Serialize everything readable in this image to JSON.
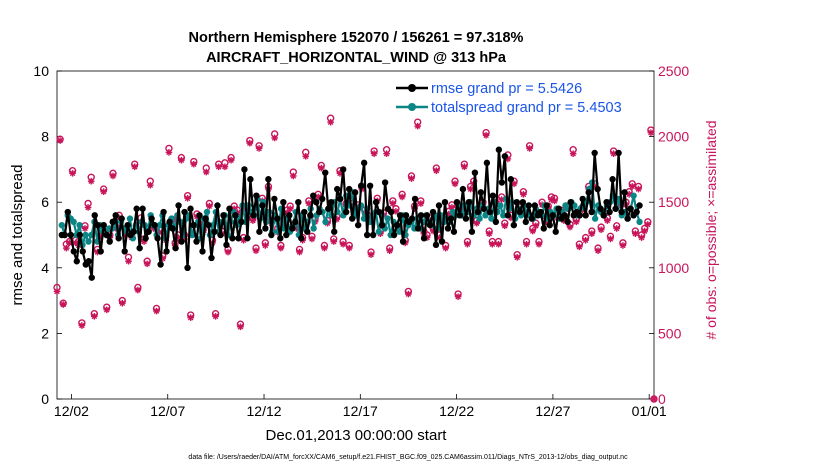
{
  "chart_data": {
    "type": "line",
    "title": "Northern Hemisphere 152070 / 156261 = 97.318%",
    "subtitle": "AIRCRAFT_HORIZONTAL_WIND @ 313 hPa",
    "xlabel": "Dec.01,2013 00:00:00 start",
    "ylabel": "rmse and totalspread",
    "y2label": "# of obs: o=possible; ×=assimilated",
    "footer": "data file: /Users/raeder/DAI/ATM_forcXX/CAM6_setup/f.e21.FHIST_BGC.f09_025.CAM6assim.011/Diags_NTrS_2013-12/obs_diag_output.nc",
    "x_ticks": [
      "12/02",
      "12/07",
      "12/12",
      "12/17",
      "12/22",
      "12/27",
      "01/01"
    ],
    "x_tick_days": [
      1,
      6,
      11,
      16,
      21,
      26,
      31
    ],
    "xlim": [
      0.25,
      31.25
    ],
    "ylim": [
      0,
      10
    ],
    "y_ticks": [
      "0",
      "2",
      "4",
      "6",
      "8",
      "10"
    ],
    "y2lim": [
      0,
      2500
    ],
    "y2_ticks": [
      "0",
      "500",
      "1000",
      "1500",
      "2000",
      "2500"
    ],
    "colors": {
      "rmse": "#000000",
      "spread": "#0b8585",
      "obs": "#c8155a",
      "legend_text": "#1a55e8"
    },
    "series": [
      {
        "name": "rmse grand pr = 5.5426",
        "values": [
          5.0,
          5.0,
          5.7,
          5.0,
          4.5,
          4.2,
          5.0,
          4.5,
          4.1,
          4.2,
          3.7,
          5.6,
          5.3,
          4.5,
          5.3,
          5.0,
          4.8,
          5.4,
          5.6,
          4.9,
          5.5,
          4.5,
          5.3,
          5.0,
          5.1,
          5.8,
          4.6,
          5.8,
          4.9,
          5.1,
          5.5,
          5.3,
          4.9,
          4.1,
          5.7,
          4.5,
          5.4,
          5.2,
          4.6,
          5.9,
          4.8,
          5.7,
          4.0,
          5.8,
          5.3,
          4.8,
          5.6,
          4.5,
          5.5,
          5.3,
          4.3,
          5.1,
          5.9,
          5.0,
          5.6,
          4.7,
          5.8,
          4.9,
          5.6,
          4.9,
          5.4,
          7.0,
          4.9,
          6.7,
          5.6,
          6.2,
          5.1,
          5.9,
          5.2,
          6.7,
          5.0,
          6.1,
          5.5,
          4.9,
          6.0,
          5.0,
          5.6,
          5.2,
          5.4,
          6.0,
          4.9,
          5.7,
          5.1,
          5.6,
          6.2,
          6.0,
          5.7,
          6.1,
          6.9,
          5.8,
          6.0,
          5.1,
          6.4,
          6.1,
          7.0,
          5.7,
          6.4,
          5.5,
          6.3,
          5.3,
          6.5,
          7.2,
          5.0,
          6.5,
          5.0,
          6.0,
          5.7,
          5.3,
          6.6,
          5.8,
          5.7,
          5.0,
          5.3,
          5.6,
          4.8,
          5.6,
          5.4,
          5.5,
          6.1,
          5.2,
          5.6,
          4.9,
          5.6,
          5.3,
          5.7,
          4.7,
          5.9,
          4.8,
          6.0,
          5.2,
          5.5,
          5.1,
          6.0,
          5.6,
          6.4,
          5.5,
          6.0,
          5.1,
          6.9,
          5.7,
          6.3,
          5.8,
          7.2,
          5.7,
          6.2,
          5.4,
          7.6,
          6.6,
          7.4,
          5.6,
          6.7,
          5.3,
          6.0,
          5.7,
          6.0,
          5.4,
          5.9,
          5.5,
          5.9,
          5.6,
          5.7,
          5.2,
          5.9,
          5.3,
          5.6,
          5.1,
          5.8,
          5.5,
          5.6,
          5.4,
          6.0,
          5.6,
          5.7,
          5.6,
          6.1,
          5.6,
          6.3,
          5.7,
          7.5,
          6.4,
          5.8,
          5.6,
          6.0,
          5.7,
          6.7,
          5.8,
          7.5,
          5.7,
          6.3,
          5.5,
          5.8,
          5.6,
          5.7,
          5.9
        ]
      },
      {
        "name": "totalspread grand pr = 5.4503",
        "values": [
          5.3,
          5.0,
          5.6,
          5.5,
          5.4,
          5.0,
          5.3,
          4.7,
          5.0,
          4.8,
          5.0,
          5.4,
          4.8,
          5.3,
          5.1,
          5.0,
          5.2,
          5.2,
          5.4,
          5.0,
          5.4,
          5.2,
          5.1,
          5.5,
          4.9,
          5.3,
          5.1,
          5.4,
          5.3,
          5.1,
          5.6,
          5.3,
          5.0,
          5.3,
          5.6,
          4.9,
          5.3,
          5.5,
          5.2,
          5.6,
          5.4,
          5.0,
          5.5,
          5.6,
          5.0,
          5.3,
          5.4,
          4.9,
          5.5,
          5.7,
          5.0,
          5.3,
          5.7,
          5.1,
          5.4,
          5.6,
          5.0,
          5.4,
          5.7,
          5.3,
          5.5,
          5.9,
          5.4,
          5.9,
          5.7,
          5.6,
          6.1,
          5.5,
          6.0,
          5.4,
          5.7,
          5.1,
          5.6,
          5.1,
          5.8,
          5.2,
          5.5,
          5.1,
          5.3,
          5.7,
          5.0,
          5.6,
          5.2,
          5.4,
          5.8,
          5.2,
          5.6,
          5.8,
          5.7,
          5.4,
          5.8,
          5.6,
          6.0,
          5.7,
          6.1,
          5.6,
          6.2,
          5.9,
          6.3,
          5.6,
          5.8,
          5.9,
          5.5,
          5.8,
          5.4,
          5.6,
          5.7,
          5.1,
          5.6,
          5.2,
          5.5,
          5.0,
          5.4,
          5.3,
          5.1,
          5.6,
          5.0,
          5.3,
          5.4,
          5.2,
          5.5,
          5.2,
          5.4,
          5.6,
          5.4,
          5.3,
          5.6,
          5.2,
          5.6,
          5.4,
          5.5,
          5.4,
          5.7,
          5.6,
          5.9,
          5.6,
          5.9,
          5.7,
          6.0,
          5.6,
          5.8,
          5.5,
          5.9,
          5.6,
          5.8,
          5.5,
          6.0,
          5.7,
          5.9,
          5.6,
          6.1,
          5.8,
          6.0,
          5.5,
          5.8,
          5.6,
          5.9,
          5.7,
          5.6,
          5.5,
          5.8,
          5.7,
          5.6,
          5.9,
          5.5,
          5.7,
          5.6,
          5.8,
          5.5,
          5.7,
          5.9,
          5.8,
          6.0,
          5.9,
          5.6,
          5.8,
          5.9,
          6.0,
          6.4,
          6.6,
          5.5,
          5.9,
          5.7,
          5.6,
          5.9,
          6.0,
          6.2,
          5.8,
          6.1,
          5.6,
          5.7,
          5.5,
          5.8,
          6.2,
          5.7,
          5.4
        ]
      }
    ],
    "obs_possible": [
      850,
      1980,
      730,
      1180,
      1200,
      1740,
      1210,
      1200,
      580,
      1320,
      1490,
      1690,
      650,
      1140,
      1250,
      1600,
      700,
      1250,
      1720,
      1310,
      1400,
      750,
      1270,
      1080,
      1250,
      1790,
      850,
      1380,
      1220,
      1050,
      1660,
      1320,
      690,
      1290,
      1090,
      1240,
      1910,
      1370,
      1190,
      1250,
      1840,
      1250,
      1550,
      640,
      1810,
      1410,
      1360,
      1290,
      1760,
      1490,
      1210,
      650,
      1790,
      1280,
      1800,
      1140,
      1840,
      1470,
      1440,
      570,
      1230,
      1470,
      1970,
      1380,
      1150,
      1930,
      1530,
      1190,
      1620,
      1360,
      2020,
      1300,
      1170,
      1330,
      1440,
      1470,
      1730,
      1320,
      1140,
      1230,
      1880,
      1510,
      1240,
      1370,
      1560,
      1780,
      1170,
      1360,
      2140,
      1220,
      1390,
      1740,
      1200,
      1490,
      1170,
      1490,
      1420,
      1480,
      1620,
      1440,
      1400,
      1120,
      1890,
      1530,
      1280,
      1420,
      1900,
      1150,
      1510,
      1450,
      1310,
      1560,
      1210,
      820,
      1700,
      1470,
      2110,
      1510,
      1280,
      1250,
      1380,
      1300,
      1760,
      1250,
      1370,
      1170,
      1430,
      1480,
      1660,
      800,
      1470,
      1790,
      1200,
      1620,
      1660,
      1360,
      1470,
      1500,
      2030,
      1280,
      1200,
      1500,
      1200,
      1540,
      1340,
      1860,
      1400,
      1660,
      1100,
      1460,
      1580,
      1200,
      1930,
      1300,
      1340,
      1200,
      1500,
      1360,
      1470,
      1540,
      1530,
      1400,
      1440,
      1380,
      1470,
      1330,
      1900,
      1370,
      1180,
      1460,
      1230,
      1620,
      1280,
      1640,
      1150,
      1310,
      1420,
      1380,
      1240,
      1890,
      1320,
      1500,
      1190,
      1500,
      1580,
      1640,
      1280,
      1620,
      1250,
      1300,
      1350,
      2050,
      0
    ],
    "obs_assimilated": [
      820,
      1970,
      720,
      1150,
      1190,
      1720,
      1190,
      1170,
      560,
      1300,
      1460,
      1660,
      630,
      1120,
      1240,
      1580,
      680,
      1230,
      1700,
      1300,
      1380,
      730,
      1250,
      1050,
      1230,
      1770,
      830,
      1350,
      1200,
      1030,
      1630,
      1300,
      670,
      1270,
      1070,
      1210,
      1880,
      1350,
      1170,
      1230,
      1820,
      1220,
      1530,
      620,
      1790,
      1390,
      1340,
      1270,
      1730,
      1470,
      1190,
      630,
      1770,
      1260,
      1770,
      1120,
      1820,
      1450,
      1420,
      550,
      1210,
      1450,
      1950,
      1360,
      1130,
      1910,
      1510,
      1170,
      1600,
      1340,
      1990,
      1270,
      1150,
      1310,
      1420,
      1450,
      1700,
      1300,
      1120,
      1210,
      1850,
      1490,
      1220,
      1350,
      1540,
      1760,
      1150,
      1340,
      2110,
      1200,
      1370,
      1720,
      1180,
      1470,
      1150,
      1470,
      1400,
      1460,
      1600,
      1420,
      1380,
      1100,
      1870,
      1510,
      1260,
      1400,
      1870,
      1130,
      1490,
      1430,
      1290,
      1540,
      1190,
      800,
      1680,
      1450,
      2080,
      1490,
      1260,
      1230,
      1360,
      1280,
      1740,
      1230,
      1350,
      1150,
      1410,
      1460,
      1640,
      780,
      1450,
      1770,
      1180,
      1600,
      1640,
      1340,
      1450,
      1480,
      2010,
      1260,
      1180,
      1480,
      1180,
      1520,
      1320,
      1830,
      1380,
      1640,
      1080,
      1440,
      1560,
      1180,
      1910,
      1280,
      1320,
      1180,
      1480,
      1340,
      1450,
      1520,
      1510,
      1380,
      1420,
      1360,
      1450,
      1310,
      1870,
      1350,
      1160,
      1440,
      1210,
      1600,
      1260,
      1620,
      1130,
      1290,
      1400,
      1360,
      1220,
      1870,
      1300,
      1480,
      1170,
      1480,
      1560,
      1620,
      1260,
      1600,
      1230,
      1280,
      1330,
      2030,
      0
    ]
  }
}
